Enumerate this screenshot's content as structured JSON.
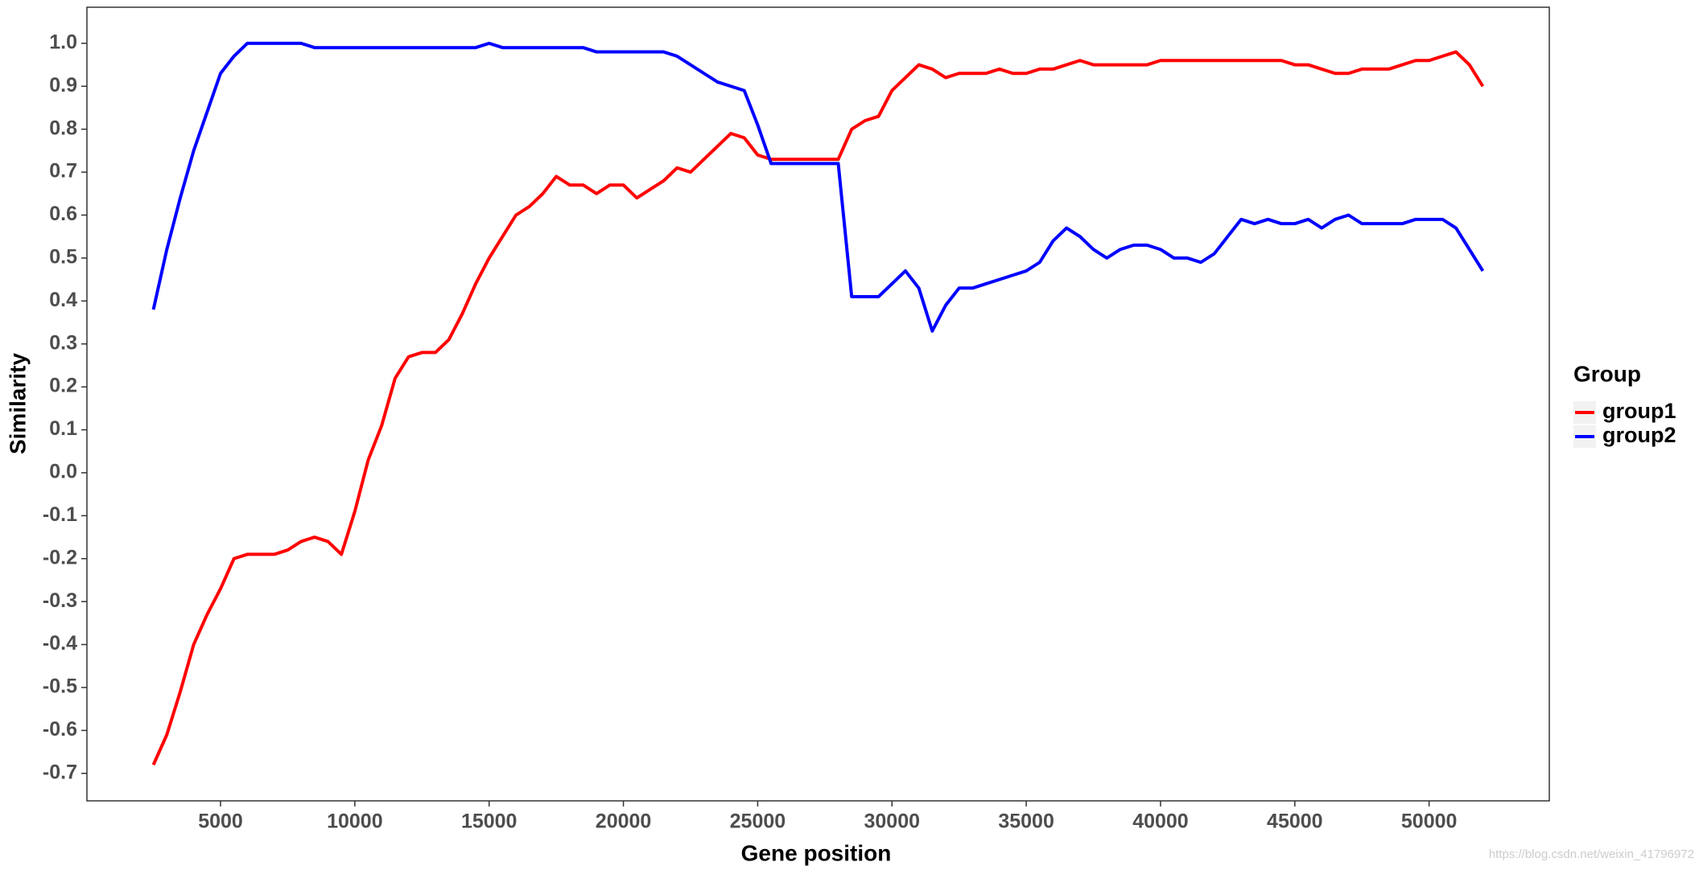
{
  "chart_data": {
    "type": "line",
    "x_label": "Gene position",
    "y_label": "Similarity",
    "legend_title": "Group",
    "legend_position": "right",
    "watermark": "https://blog.csdn.net/weixin_41796972",
    "x": [
      2500,
      3000,
      3500,
      4000,
      4500,
      5000,
      5500,
      6000,
      6500,
      7000,
      7500,
      8000,
      8500,
      9000,
      9500,
      10000,
      10500,
      11000,
      11500,
      12000,
      12500,
      13000,
      13500,
      14000,
      14500,
      15000,
      15500,
      16000,
      16500,
      17000,
      17500,
      18000,
      18500,
      19000,
      19500,
      20000,
      20500,
      21000,
      21500,
      22000,
      22500,
      23000,
      23500,
      24000,
      24500,
      25000,
      25500,
      26000,
      26500,
      27000,
      27500,
      28000,
      28500,
      29000,
      29500,
      30000,
      30500,
      31000,
      31500,
      32000,
      32500,
      33000,
      33500,
      34000,
      34500,
      35000,
      35500,
      36000,
      36500,
      37000,
      37500,
      38000,
      38500,
      39000,
      39500,
      40000,
      40500,
      41000,
      41500,
      42000,
      42500,
      43000,
      43500,
      44000,
      44500,
      45000,
      45500,
      46000,
      46500,
      47000,
      47500,
      48000,
      48500,
      49000,
      49500,
      50000,
      50500,
      51000,
      51500,
      52000
    ],
    "series": [
      {
        "name": "group1",
        "color": "#ff0000",
        "values": [
          -0.68,
          -0.61,
          -0.51,
          -0.4,
          -0.33,
          -0.27,
          -0.2,
          -0.19,
          -0.19,
          -0.19,
          -0.18,
          -0.16,
          -0.15,
          -0.16,
          -0.19,
          -0.09,
          0.03,
          0.11,
          0.22,
          0.27,
          0.28,
          0.28,
          0.31,
          0.37,
          0.44,
          0.5,
          0.55,
          0.6,
          0.62,
          0.65,
          0.69,
          0.67,
          0.67,
          0.65,
          0.67,
          0.67,
          0.64,
          0.66,
          0.68,
          0.71,
          0.7,
          0.73,
          0.76,
          0.79,
          0.78,
          0.74,
          0.73,
          0.73,
          0.73,
          0.73,
          0.73,
          0.73,
          0.8,
          0.82,
          0.83,
          0.89,
          0.92,
          0.95,
          0.94,
          0.92,
          0.93,
          0.93,
          0.93,
          0.94,
          0.93,
          0.93,
          0.94,
          0.94,
          0.95,
          0.96,
          0.95,
          0.95,
          0.95,
          0.95,
          0.95,
          0.96,
          0.96,
          0.96,
          0.96,
          0.96,
          0.96,
          0.96,
          0.96,
          0.96,
          0.96,
          0.95,
          0.95,
          0.94,
          0.93,
          0.93,
          0.94,
          0.94,
          0.94,
          0.95,
          0.96,
          0.96,
          0.97,
          0.98,
          0.95,
          0.9
        ]
      },
      {
        "name": "group2",
        "color": "#0000ff",
        "values": [
          0.38,
          0.52,
          0.64,
          0.75,
          0.84,
          0.93,
          0.97,
          1.0,
          1.0,
          1.0,
          1.0,
          1.0,
          0.99,
          0.99,
          0.99,
          0.99,
          0.99,
          0.99,
          0.99,
          0.99,
          0.99,
          0.99,
          0.99,
          0.99,
          0.99,
          1.0,
          0.99,
          0.99,
          0.99,
          0.99,
          0.99,
          0.99,
          0.99,
          0.98,
          0.98,
          0.98,
          0.98,
          0.98,
          0.98,
          0.97,
          0.95,
          0.93,
          0.91,
          0.9,
          0.89,
          0.81,
          0.72,
          0.72,
          0.72,
          0.72,
          0.72,
          0.72,
          0.41,
          0.41,
          0.41,
          0.44,
          0.47,
          0.43,
          0.33,
          0.39,
          0.43,
          0.43,
          0.44,
          0.45,
          0.46,
          0.47,
          0.49,
          0.54,
          0.57,
          0.55,
          0.52,
          0.5,
          0.52,
          0.53,
          0.53,
          0.52,
          0.5,
          0.5,
          0.49,
          0.51,
          0.55,
          0.59,
          0.58,
          0.59,
          0.58,
          0.58,
          0.59,
          0.57,
          0.59,
          0.6,
          0.58,
          0.58,
          0.58,
          0.58,
          0.59,
          0.59,
          0.59,
          0.57,
          0.52,
          0.47
        ]
      }
    ],
    "xlim": [
      25,
      54475
    ],
    "xticks": [
      5000,
      10000,
      15000,
      20000,
      25000,
      30000,
      35000,
      40000,
      45000,
      50000
    ],
    "ylim": [
      -0.764,
      1.084
    ],
    "yticks": [
      -0.7,
      -0.6,
      -0.5,
      -0.4,
      -0.3,
      -0.2,
      -0.1,
      {
        "value": 0,
        "label": "0.0"
      },
      0.1,
      0.2,
      0.3,
      0.4,
      0.5,
      0.6,
      0.7,
      0.8,
      0.9,
      {
        "value": 1,
        "label": "1.0"
      }
    ],
    "grid": false
  }
}
